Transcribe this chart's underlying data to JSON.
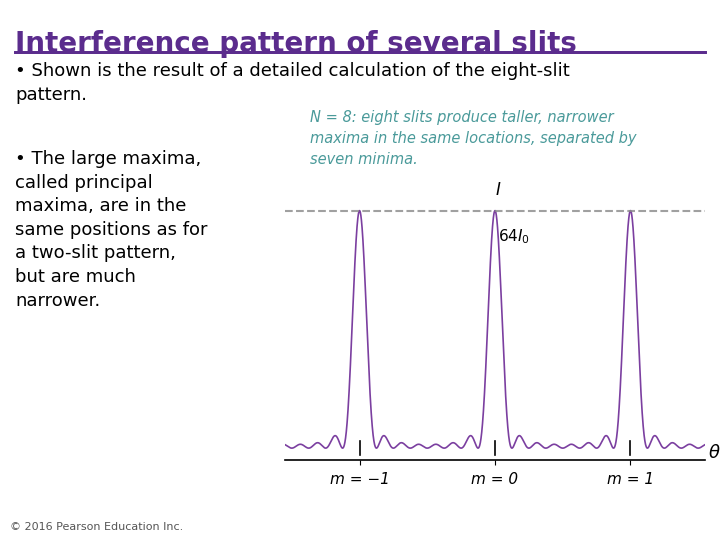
{
  "title": "Interference pattern of several slits",
  "title_color": "#5b2c8d",
  "title_fontsize": 20,
  "bg_color": "#ffffff",
  "bullet1": "Shown is the result of a detailed calculation of the eight-slit\npattern.",
  "bullet2": "The large maxima,\ncalled principal\nmaxima, are in the\nsame positions as for\na two-slit pattern,\nbut are much\nnarrower.",
  "annotation_color": "#4a9a9a",
  "annotation_text": "N = 8: eight slits produce taller, narrower\nmaxima in the same locations, separated by\nseven minima.",
  "curve_color": "#7b3fa0",
  "dashed_color": "#888888",
  "label_I": "I",
  "label_64I0": "64I₀",
  "label_theta": "θ",
  "label_m_minus1": "m = −1",
  "label_m_0": "m = 0",
  "label_m_1": "m = 1",
  "N_slits": 8,
  "copyright": "© 2016 Pearson Education Inc.",
  "line_color": "#5b2c8d",
  "separator_color": "#5b2c8d"
}
